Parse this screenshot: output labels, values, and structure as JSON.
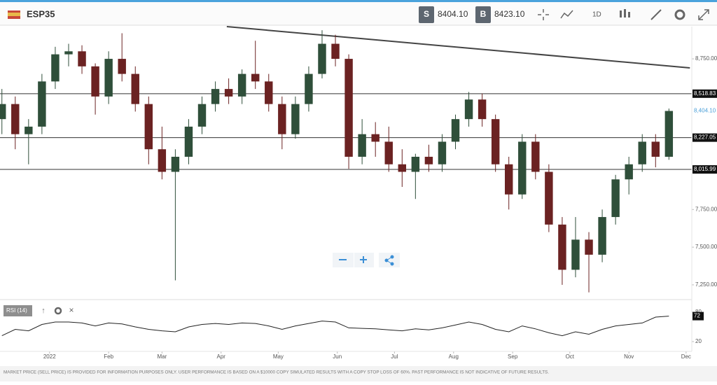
{
  "header": {
    "symbol": "ESP35",
    "sell_tag": "S",
    "sell": "8404.10",
    "buy_tag": "B",
    "buy": "8423.10",
    "timeframe": "1D"
  },
  "chart_data": {
    "type": "candlestick",
    "x": [
      -25,
      -18,
      -11,
      -4,
      3,
      10,
      17,
      24,
      31,
      38,
      45,
      52,
      59,
      66,
      73,
      80,
      87,
      94,
      101,
      108,
      115,
      122,
      129,
      136,
      143,
      150,
      157,
      164,
      171,
      178,
      185,
      192,
      199,
      206,
      213,
      220,
      227,
      234,
      241,
      248,
      255,
      262,
      269,
      276,
      283,
      290,
      297,
      304,
      311,
      318,
      325
    ],
    "open": [
      8350,
      8450,
      8250,
      8300,
      8600,
      8780,
      8800,
      8700,
      8500,
      8750,
      8650,
      8450,
      8150,
      8000,
      8100,
      8300,
      8450,
      8550,
      8500,
      8650,
      8600,
      8450,
      8250,
      8450,
      8650,
      8850,
      8750,
      8100,
      8250,
      8200,
      8050,
      8000,
      8100,
      8050,
      8200,
      8350,
      8480,
      8350,
      8050,
      7850,
      8200,
      8000,
      7650,
      7350,
      7550,
      7450,
      7700,
      7950,
      8050,
      8200,
      8100
    ],
    "high": [
      8550,
      8500,
      8350,
      8650,
      8830,
      8850,
      8840,
      8720,
      8800,
      8920,
      8700,
      8500,
      8300,
      8150,
      8350,
      8500,
      8600,
      8620,
      8680,
      8870,
      8650,
      8500,
      8500,
      8700,
      8940,
      8910,
      8780,
      8350,
      8330,
      8300,
      8150,
      8120,
      8180,
      8250,
      8380,
      8530,
      8520,
      8380,
      8100,
      8250,
      8250,
      8050,
      7700,
      7700,
      7600,
      7750,
      7980,
      8100,
      8250,
      8250,
      8420
    ],
    "low": [
      8250,
      8150,
      8050,
      8250,
      8550,
      8700,
      8650,
      8380,
      8450,
      8600,
      8400,
      8050,
      7950,
      7280,
      8050,
      8250,
      8400,
      8450,
      8450,
      8550,
      8400,
      8150,
      8220,
      8400,
      8620,
      8700,
      8020,
      8050,
      8100,
      8000,
      7900,
      7820,
      8000,
      8000,
      8150,
      8300,
      8300,
      8000,
      7750,
      7820,
      7950,
      7600,
      7250,
      7300,
      7200,
      7400,
      7650,
      7850,
      8000,
      8030,
      8080
    ],
    "close": [
      8450,
      8250,
      8300,
      8600,
      8780,
      8800,
      8700,
      8500,
      8750,
      8650,
      8450,
      8150,
      8000,
      8100,
      8300,
      8450,
      8550,
      8500,
      8650,
      8600,
      8450,
      8250,
      8450,
      8650,
      8850,
      8750,
      8100,
      8250,
      8200,
      8050,
      8000,
      8100,
      8050,
      8200,
      8350,
      8480,
      8350,
      8050,
      7850,
      8200,
      8000,
      7650,
      7350,
      7550,
      7450,
      7700,
      7950,
      8050,
      8200,
      8100,
      8404.1
    ],
    "up_color": "#2f4f3a",
    "down_color": "#6b2222",
    "xlim": [
      -26,
      337
    ],
    "xticks": [
      {
        "value": 0,
        "label": "2022"
      },
      {
        "value": 31,
        "label": "Feb"
      },
      {
        "value": 59,
        "label": "Mar"
      },
      {
        "value": 90,
        "label": "Apr"
      },
      {
        "value": 120,
        "label": "May"
      },
      {
        "value": 151,
        "label": "Jun"
      },
      {
        "value": 181,
        "label": "Jul"
      },
      {
        "value": 212,
        "label": "Aug"
      },
      {
        "value": 243,
        "label": "Sep"
      },
      {
        "value": 273,
        "label": "Oct"
      },
      {
        "value": 304,
        "label": "Nov"
      },
      {
        "value": 334,
        "label": "Dec"
      }
    ],
    "ylim": [
      7152,
      8964
    ],
    "yticks": [
      {
        "value": 8750,
        "label": "8,750.00"
      },
      {
        "value": 7750,
        "label": "7,750.00"
      },
      {
        "value": 7500,
        "label": "7,500.00"
      },
      {
        "value": 7250,
        "label": "7,250.00"
      }
    ],
    "levels": [
      {
        "value": 8518.83,
        "label": "8,518.83"
      },
      {
        "value": 8227.05,
        "label": "8,227.05"
      },
      {
        "value": 8015.99,
        "label": "8,015.99"
      }
    ],
    "last_price": {
      "value": 8404.1,
      "label": "8,404.10",
      "color": "#4a9fd8"
    },
    "trendline": {
      "x": [
        93,
        336
      ],
      "y": [
        8964,
        8690
      ],
      "color": "#444444"
    },
    "rsi": {
      "name": "RSI (14)",
      "color": "#222222",
      "values": [
        32,
        45,
        42,
        55,
        60,
        60,
        58,
        52,
        58,
        56,
        50,
        45,
        42,
        40,
        50,
        55,
        57,
        55,
        58,
        57,
        52,
        45,
        52,
        57,
        62,
        60,
        48,
        47,
        46,
        44,
        42,
        46,
        44,
        48,
        54,
        60,
        55,
        45,
        40,
        52,
        46,
        38,
        32,
        40,
        35,
        45,
        52,
        55,
        58,
        70,
        72
      ],
      "ylim": [
        0,
        100
      ],
      "yticks": [
        20,
        80
      ],
      "current": 72
    }
  },
  "footer": "MARKET PRICE (SELL PRICE) IS PROVIDED FOR INFORMATION PURPOSES ONLY. USER PERFORMANCE IS BASED ON A $10000 COPY SIMULATED RESULTS WITH A COPY STOP LOSS OF 60%. PAST PERFORMANCE IS NOT INDICATIVE OF FUTURE RESULTS."
}
